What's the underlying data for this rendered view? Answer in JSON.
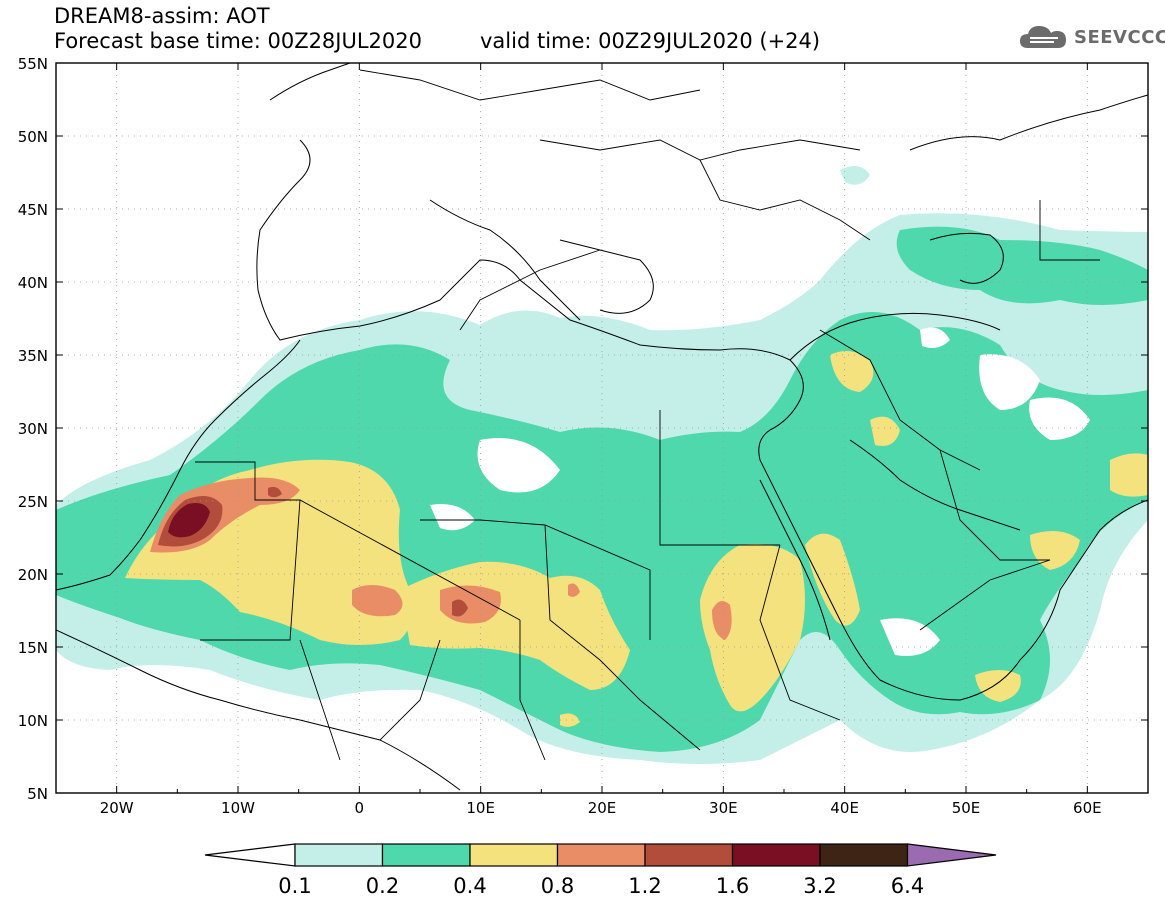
{
  "header": {
    "line1": "DREAM8-assim: AOT",
    "line2": "Forecast base time: 00Z28JUL2020",
    "line3": "valid time: 00Z29JUL2020 (+24)"
  },
  "brand": {
    "name": "SEEVCCC",
    "icon": "cloud-icon"
  },
  "map": {
    "lat_labels": [
      "55N",
      "50N",
      "45N",
      "40N",
      "35N",
      "30N",
      "25N",
      "20N",
      "15N",
      "10N",
      "5N"
    ],
    "lon_labels": [
      "20W",
      "10W",
      "0",
      "10E",
      "20E",
      "30E",
      "40E",
      "50E",
      "60E"
    ],
    "grid": true,
    "lat_range": [
      5,
      55
    ],
    "lon_range": [
      -25,
      65
    ]
  },
  "legend": {
    "labels": [
      "0.1",
      "0.2",
      "0.4",
      "0.8",
      "1.2",
      "1.6",
      "3.2",
      "6.4"
    ],
    "colors": [
      "#ffffff",
      "#c3efe8",
      "#4fd8ac",
      "#f3e27e",
      "#e98d66",
      "#b24d3c",
      "#7a0f24",
      "#3e2414",
      "#9a6bb0"
    ]
  }
}
